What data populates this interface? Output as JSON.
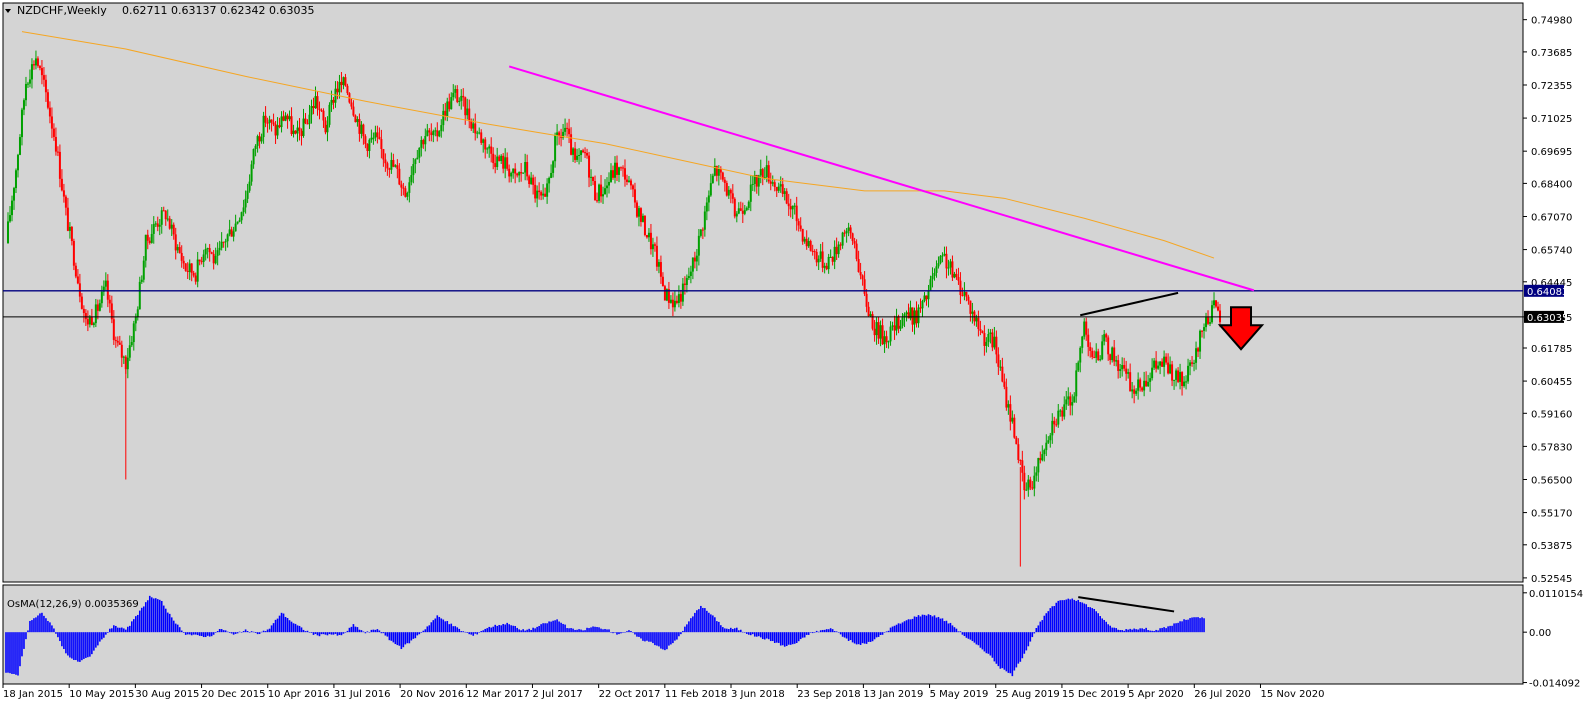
{
  "header": {
    "symbol": "NZDCHF,Weekly",
    "ohlc": "0.62711 0.63137 0.62342 0.63035"
  },
  "indicator": {
    "label": "OsMA(12,26,9) 0.0035369"
  },
  "colors": {
    "background": "#d4d4d4",
    "bull": "#00a000",
    "bear": "#ff0000",
    "ma": "#f5a623",
    "trendline": "#ff00ff",
    "support": "#000080",
    "osma": "#0000ff",
    "arrow": "#ff0000"
  },
  "icons": {
    "arrow": "red-down-arrow-icon",
    "menu": "dropdown-triangle-icon"
  },
  "chart_data": [
    {
      "type": "candlestick",
      "name": "NZDCHF Weekly",
      "ylim": [
        0.5238,
        0.7565
      ],
      "y_ticks": [
        "0.74980",
        "0.73685",
        "0.72355",
        "0.71025",
        "0.69695",
        "0.68400",
        "0.67070",
        "0.65740",
        "0.64445",
        "0.63035",
        "0.61785",
        "0.60455",
        "0.59160",
        "0.57830",
        "0.56500",
        "0.55170",
        "0.53875",
        "0.52545"
      ],
      "price_tags": [
        {
          "label": "0.64083",
          "value": 0.64083,
          "color": "#000080"
        },
        {
          "label": "0.63035",
          "value": 0.63035,
          "color": "#000000"
        }
      ],
      "x_labels": [
        "18 Jan 2015",
        "10 May 2015",
        "30 Aug 2015",
        "20 Dec 2015",
        "10 Apr 2016",
        "31 Jul 2016",
        "20 Nov 2016",
        "12 Mar 2017",
        "2 Jul 2017",
        "22 Oct 2017",
        "11 Feb 2018",
        "3 Jun 2018",
        "23 Sep 2018",
        "13 Jan 2019",
        "5 May 2019",
        "25 Aug 2019",
        "15 Dec 2019",
        "5 Apr 2020",
        "26 Jul 2020",
        "15 Nov 2020"
      ],
      "close_path": [
        [
          0,
          0.66
        ],
        [
          5,
          0.69
        ],
        [
          10,
          0.725
        ],
        [
          15,
          0.735
        ],
        [
          20,
          0.72
        ],
        [
          25,
          0.7
        ],
        [
          30,
          0.672
        ],
        [
          35,
          0.65
        ],
        [
          40,
          0.628
        ],
        [
          45,
          0.632
        ],
        [
          50,
          0.642
        ],
        [
          55,
          0.62
        ],
        [
          60,
          0.612
        ],
        [
          65,
          0.63
        ],
        [
          70,
          0.66
        ],
        [
          75,
          0.668
        ],
        [
          80,
          0.672
        ],
        [
          85,
          0.66
        ],
        [
          90,
          0.65
        ],
        [
          95,
          0.648
        ],
        [
          100,
          0.66
        ],
        [
          105,
          0.652
        ],
        [
          110,
          0.662
        ],
        [
          115,
          0.668
        ],
        [
          120,
          0.678
        ],
        [
          125,
          0.7
        ],
        [
          130,
          0.71
        ],
        [
          135,
          0.705
        ],
        [
          140,
          0.712
        ],
        [
          145,
          0.702
        ],
        [
          150,
          0.708
        ],
        [
          155,
          0.718
        ],
        [
          160,
          0.706
        ],
        [
          165,
          0.722
        ],
        [
          170,
          0.724
        ],
        [
          175,
          0.712
        ],
        [
          180,
          0.7
        ],
        [
          185,
          0.702
        ],
        [
          190,
          0.694
        ],
        [
          195,
          0.69
        ],
        [
          200,
          0.68
        ],
        [
          205,
          0.696
        ],
        [
          210,
          0.704
        ],
        [
          215,
          0.702
        ],
        [
          220,
          0.714
        ],
        [
          225,
          0.72
        ],
        [
          230,
          0.714
        ],
        [
          235,
          0.706
        ],
        [
          240,
          0.7
        ],
        [
          245,
          0.694
        ],
        [
          250,
          0.692
        ],
        [
          255,
          0.686
        ],
        [
          260,
          0.69
        ],
        [
          265,
          0.68
        ],
        [
          270,
          0.676
        ],
        [
          275,
          0.7
        ],
        [
          280,
          0.706
        ],
        [
          285,
          0.692
        ],
        [
          290,
          0.696
        ],
        [
          295,
          0.68
        ],
        [
          300,
          0.682
        ],
        [
          305,
          0.69
        ],
        [
          310,
          0.688
        ],
        [
          315,
          0.676
        ],
        [
          320,
          0.666
        ],
        [
          325,
          0.656
        ],
        [
          330,
          0.64
        ],
        [
          335,
          0.636
        ],
        [
          340,
          0.642
        ],
        [
          345,
          0.654
        ],
        [
          350,
          0.672
        ],
        [
          355,
          0.69
        ],
        [
          360,
          0.684
        ],
        [
          365,
          0.672
        ],
        [
          370,
          0.676
        ],
        [
          375,
          0.684
        ],
        [
          380,
          0.69
        ],
        [
          385,
          0.684
        ],
        [
          390,
          0.678
        ],
        [
          395,
          0.672
        ],
        [
          400,
          0.662
        ],
        [
          405,
          0.656
        ],
        [
          410,
          0.652
        ],
        [
          415,
          0.656
        ],
        [
          420,
          0.666
        ],
        [
          425,
          0.66
        ],
        [
          430,
          0.638
        ],
        [
          435,
          0.626
        ],
        [
          440,
          0.622
        ],
        [
          445,
          0.626
        ],
        [
          450,
          0.632
        ],
        [
          455,
          0.63
        ],
        [
          460,
          0.636
        ],
        [
          465,
          0.648
        ],
        [
          470,
          0.654
        ],
        [
          475,
          0.646
        ],
        [
          480,
          0.64
        ],
        [
          485,
          0.63
        ],
        [
          490,
          0.622
        ],
        [
          495,
          0.62
        ],
        [
          500,
          0.6
        ],
        [
          505,
          0.585
        ],
        [
          510,
          0.56
        ],
        [
          515,
          0.566
        ],
        [
          520,
          0.58
        ],
        [
          525,
          0.59
        ],
        [
          530,
          0.593
        ],
        [
          535,
          0.6
        ],
        [
          540,
          0.628
        ],
        [
          545,
          0.612
        ],
        [
          550,
          0.62
        ],
        [
          555,
          0.614
        ],
        [
          560,
          0.608
        ],
        [
          565,
          0.6
        ],
        [
          570,
          0.605
        ],
        [
          575,
          0.61
        ],
        [
          580,
          0.612
        ],
        [
          585,
          0.606
        ],
        [
          590,
          0.604
        ],
        [
          595,
          0.612
        ],
        [
          600,
          0.628
        ],
        [
          605,
          0.634
        ],
        [
          608,
          0.63
        ]
      ],
      "spikes": [
        [
          60,
          0.565
        ],
        [
          508,
          0.53
        ]
      ],
      "moving_average": [
        [
          8,
          0.745
        ],
        [
          60,
          0.738
        ],
        [
          120,
          0.727
        ],
        [
          180,
          0.717
        ],
        [
          240,
          0.708
        ],
        [
          300,
          0.7
        ],
        [
          340,
          0.693
        ],
        [
          380,
          0.686
        ],
        [
          430,
          0.681
        ],
        [
          470,
          0.681
        ],
        [
          500,
          0.678
        ],
        [
          540,
          0.67
        ],
        [
          580,
          0.661
        ],
        [
          605,
          0.654
        ]
      ],
      "trendline": [
        [
          252,
          0.731
        ],
        [
          625,
          0.641
        ]
      ],
      "black_trend": [
        [
          538,
          0.631
        ],
        [
          587,
          0.64
        ]
      ],
      "horizontal_lines": [
        0.64083,
        0.63035
      ],
      "arrow": {
        "direction": "down",
        "at": [
          607,
          0.627
        ]
      }
    },
    {
      "type": "histogram",
      "name": "OsMA(12,26,9)",
      "ylim": [
        -0.0145,
        0.0132
      ],
      "y_ticks": [
        "0.0110154",
        "0.00",
        "-0.014092"
      ],
      "profile": [
        [
          0,
          -0.0115
        ],
        [
          6,
          -0.012
        ],
        [
          12,
          0.003
        ],
        [
          18,
          0.0055
        ],
        [
          24,
          0.001
        ],
        [
          30,
          -0.006
        ],
        [
          36,
          -0.0085
        ],
        [
          42,
          -0.007
        ],
        [
          48,
          -0.002
        ],
        [
          54,
          0.002
        ],
        [
          60,
          0.0005
        ],
        [
          66,
          0.005
        ],
        [
          72,
          0.01
        ],
        [
          78,
          0.0085
        ],
        [
          84,
          0.003
        ],
        [
          90,
          -0.0005
        ],
        [
          96,
          -0.001
        ],
        [
          102,
          -0.0012
        ],
        [
          108,
          0.001
        ],
        [
          114,
          -0.0008
        ],
        [
          120,
          0.0005
        ],
        [
          126,
          -0.0005
        ],
        [
          132,
          0.001
        ],
        [
          138,
          0.0055
        ],
        [
          144,
          0.0025
        ],
        [
          150,
          0.0005
        ],
        [
          156,
          -0.001
        ],
        [
          162,
          -0.0005
        ],
        [
          168,
          -0.001
        ],
        [
          174,
          0.002
        ],
        [
          180,
          -0.0002
        ],
        [
          186,
          0.001
        ],
        [
          192,
          -0.002
        ],
        [
          198,
          -0.0045
        ],
        [
          204,
          -0.002
        ],
        [
          210,
          0.001
        ],
        [
          216,
          0.0045
        ],
        [
          222,
          0.0025
        ],
        [
          228,
          0.0005
        ],
        [
          234,
          -0.001
        ],
        [
          240,
          0.001
        ],
        [
          246,
          0.002
        ],
        [
          252,
          0.0025
        ],
        [
          258,
          0.0005
        ],
        [
          264,
          0.001
        ],
        [
          270,
          0.0025
        ],
        [
          276,
          0.0035
        ],
        [
          282,
          0.001
        ],
        [
          288,
          0.0005
        ],
        [
          294,
          0.0015
        ],
        [
          300,
          0.001
        ],
        [
          306,
          -0.0005
        ],
        [
          312,
          0.0005
        ],
        [
          318,
          -0.002
        ],
        [
          324,
          -0.003
        ],
        [
          330,
          -0.005
        ],
        [
          336,
          -0.002
        ],
        [
          342,
          0.003
        ],
        [
          348,
          0.0075
        ],
        [
          354,
          0.0045
        ],
        [
          360,
          0.001
        ],
        [
          366,
          0.001
        ],
        [
          372,
          -0.0005
        ],
        [
          378,
          -0.0015
        ],
        [
          384,
          -0.0025
        ],
        [
          390,
          -0.004
        ],
        [
          396,
          -0.003
        ],
        [
          402,
          -0.0005
        ],
        [
          408,
          0.0005
        ],
        [
          414,
          0.001
        ],
        [
          420,
          -0.0015
        ],
        [
          426,
          -0.0035
        ],
        [
          432,
          -0.003
        ],
        [
          438,
          -0.001
        ],
        [
          444,
          0.0015
        ],
        [
          450,
          0.003
        ],
        [
          456,
          0.0045
        ],
        [
          462,
          0.005
        ],
        [
          468,
          0.004
        ],
        [
          474,
          0.002
        ],
        [
          480,
          -0.001
        ],
        [
          486,
          -0.0035
        ],
        [
          492,
          -0.006
        ],
        [
          498,
          -0.01
        ],
        [
          504,
          -0.012
        ],
        [
          510,
          -0.006
        ],
        [
          516,
          0.001
        ],
        [
          522,
          0.006
        ],
        [
          528,
          0.009
        ],
        [
          534,
          0.0095
        ],
        [
          540,
          0.008
        ],
        [
          546,
          0.006
        ],
        [
          552,
          0.002
        ],
        [
          558,
          0.0005
        ],
        [
          564,
          0.001
        ],
        [
          570,
          0.001
        ],
        [
          576,
          0.0005
        ],
        [
          582,
          0.0015
        ],
        [
          588,
          0.003
        ],
        [
          594,
          0.004
        ],
        [
          600,
          0.004
        ]
      ],
      "black_trend": [
        [
          537,
          0.0098
        ],
        [
          585,
          0.0058
        ]
      ]
    }
  ]
}
